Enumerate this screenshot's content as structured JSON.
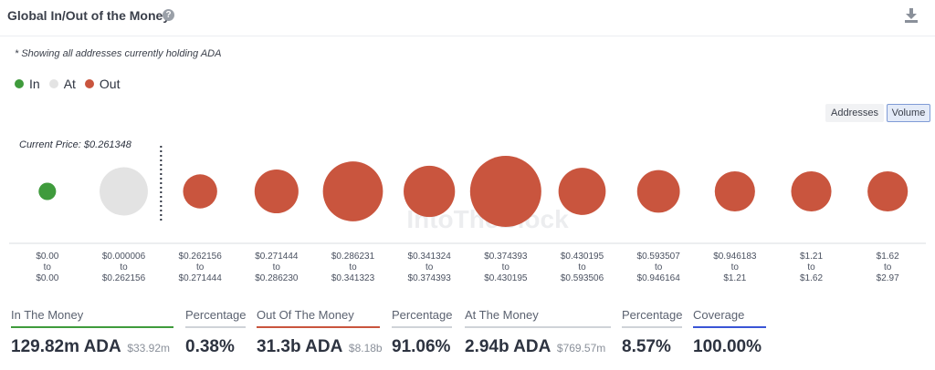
{
  "header": {
    "title": "Global In/Out of the Money",
    "help_icon": "question-circle-icon",
    "download_icon": "download-icon"
  },
  "note": "* Showing all addresses currently holding ADA",
  "legend": [
    {
      "label": "In",
      "color": "#3f9b3c"
    },
    {
      "label": "At",
      "color": "#e3e3e3"
    },
    {
      "label": "Out",
      "color": "#c9553e"
    }
  ],
  "toggles": {
    "addresses_label": "Addresses",
    "volume_label": "Volume",
    "selected": "Volume"
  },
  "current_price_label": "Current Price: $0.261348",
  "watermark": "IntoTheBlock",
  "chart_data": {
    "type": "bubble",
    "title": "Global In/Out of the Money",
    "metric": "Volume",
    "current_price": 0.261348,
    "categories": [
      {
        "from": "$0.00",
        "to": "$0.00",
        "status": "In",
        "relative_volume": 0.06
      },
      {
        "from": "$0.000006",
        "to": "$0.262156",
        "status": "At",
        "relative_volume": 0.46
      },
      {
        "from": "$0.262156",
        "to": "$0.271444",
        "status": "Out",
        "relative_volume": 0.23
      },
      {
        "from": "$0.271444",
        "to": "$0.286230",
        "status": "Out",
        "relative_volume": 0.38
      },
      {
        "from": "$0.286231",
        "to": "$0.341323",
        "status": "Out",
        "relative_volume": 0.71
      },
      {
        "from": "$0.341324",
        "to": "$0.374393",
        "status": "Out",
        "relative_volume": 0.52
      },
      {
        "from": "$0.374393",
        "to": "$0.430195",
        "status": "Out",
        "relative_volume": 1.0
      },
      {
        "from": "$0.430195",
        "to": "$0.593506",
        "status": "Out",
        "relative_volume": 0.44
      },
      {
        "from": "$0.593507",
        "to": "$0.946164",
        "status": "Out",
        "relative_volume": 0.36
      },
      {
        "from": "$0.946183",
        "to": "$1.21",
        "status": "Out",
        "relative_volume": 0.32
      },
      {
        "from": "$1.21",
        "to": "$1.62",
        "status": "Out",
        "relative_volume": 0.32
      },
      {
        "from": "$1.62",
        "to": "$2.97",
        "status": "Out",
        "relative_volume": 0.32
      }
    ],
    "tick_connector": "to",
    "colors": {
      "In": "#3f9b3c",
      "At": "#e3e3e3",
      "Out": "#c9553e"
    }
  },
  "stats": [
    {
      "label": "In The Money",
      "value": "129.82m ADA",
      "sub": "$33.92m",
      "color": "#3f9b3c"
    },
    {
      "label": "Percentage",
      "value": "0.38%",
      "sub": "",
      "color": "#cfd3d8"
    },
    {
      "label": "Out Of The Money",
      "value": "31.3b ADA",
      "sub": "$8.18b",
      "color": "#c9553e"
    },
    {
      "label": "Percentage",
      "value": "91.06%",
      "sub": "",
      "color": "#cfd3d8"
    },
    {
      "label": "At The Money",
      "value": "2.94b ADA",
      "sub": "$769.57m",
      "color": "#cfd3d8"
    },
    {
      "label": "Percentage",
      "value": "8.57%",
      "sub": "",
      "color": "#cfd3d8"
    },
    {
      "label": "Coverage",
      "value": "100.00%",
      "sub": "",
      "color": "#3a55d6"
    }
  ]
}
